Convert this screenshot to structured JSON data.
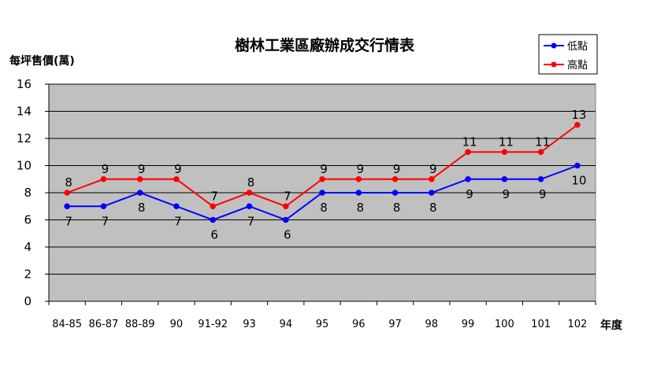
{
  "chart_data": {
    "type": "line",
    "title": "樹林工業區廠辦成交行情表",
    "ylabel": "每坪售價(萬)",
    "xlabel": "年度",
    "categories": [
      "84-85",
      "86-87",
      "88-89",
      "90",
      "91-92",
      "93",
      "94",
      "95",
      "96",
      "97",
      "98",
      "99",
      "100",
      "101",
      "102"
    ],
    "ylim": [
      0,
      16
    ],
    "yticks": [
      0,
      2,
      4,
      6,
      8,
      10,
      12,
      14,
      16
    ],
    "grid": true,
    "legend": "top-right",
    "series": [
      {
        "name": "低點",
        "color": "#0000ff",
        "values": [
          7,
          7,
          8,
          7,
          6,
          7,
          6,
          8,
          8,
          8,
          8,
          9,
          9,
          9,
          10
        ]
      },
      {
        "name": "高點",
        "color": "#ff0000",
        "values": [
          8,
          9,
          9,
          9,
          7,
          8,
          7,
          9,
          9,
          9,
          9,
          11,
          11,
          11,
          13
        ]
      }
    ],
    "plot_background": "#c0c0c0"
  }
}
